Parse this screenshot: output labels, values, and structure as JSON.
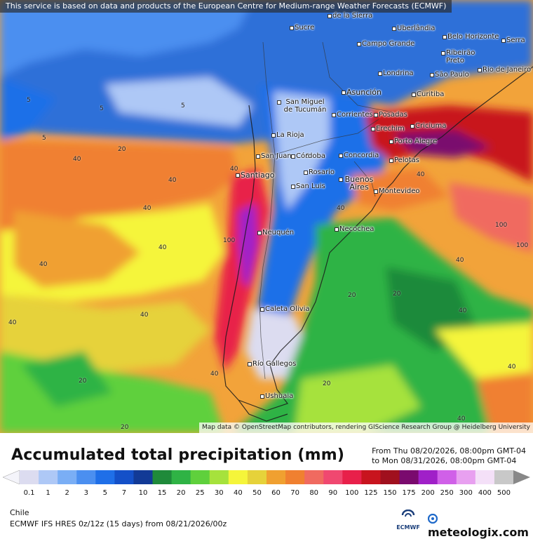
{
  "notice": "This service is based on data and products of the European Centre for Medium-range Weather Forecasts (ECMWF)",
  "attribution": "Map data © OpenStreetMap contributors, rendering GIScience Research Group @ Heidelberg University",
  "title": "Accumulated total precipitation (mm)",
  "period": {
    "from": "From Thu 08/20/2026, 08:00pm GMT-04",
    "to": "to Mon 08/31/2026, 08:00pm GMT-04"
  },
  "legend": {
    "values": [
      "0.1",
      "1",
      "2",
      "3",
      "5",
      "7",
      "10",
      "15",
      "20",
      "25",
      "30",
      "40",
      "50",
      "60",
      "70",
      "80",
      "90",
      "100",
      "125",
      "150",
      "175",
      "200",
      "250",
      "300",
      "400",
      "500"
    ],
    "colors": [
      "#dcdcf0",
      "#aec8f6",
      "#7aaef5",
      "#4b8ff0",
      "#1f6fe8",
      "#1450c8",
      "#123a96",
      "#1f8a3a",
      "#2fb345",
      "#5fd03c",
      "#a6e23c",
      "#f5f53a",
      "#e6d23a",
      "#f0a030",
      "#f08030",
      "#f06a60",
      "#f04870",
      "#e8204a",
      "#c8141e",
      "#a0101e",
      "#7a0a6e",
      "#a020c8",
      "#d060e8",
      "#e8a0f0",
      "#f4e0f8",
      "#c8c8c8"
    ]
  },
  "region": "Chile",
  "model": "ECMWF IFS HRES 0z/12z (15 days) from  08/21/2026/00z",
  "ecmwf_logo": "ECMWF",
  "brand": {
    "name": "meteologix",
    "dot": ".com"
  },
  "cities": [
    {
      "name": "Sucre"
    },
    {
      "name": "de la Sierra"
    },
    {
      "name": "Uberlândia"
    },
    {
      "name": "Belo Horizonte"
    },
    {
      "name": "Serra"
    },
    {
      "name": "Campo Grande"
    },
    {
      "name": "Ribeirão Preto"
    },
    {
      "name": "Londrina"
    },
    {
      "name": "São Paulo"
    },
    {
      "name": "Rio de Janeiro"
    },
    {
      "name": "Asunción"
    },
    {
      "name": "Curitiba"
    },
    {
      "name": "San Miguel de Tucumán"
    },
    {
      "name": "Corrientes"
    },
    {
      "name": "Posadas"
    },
    {
      "name": "Erechim"
    },
    {
      "name": "Criciuma"
    },
    {
      "name": "La Rioja"
    },
    {
      "name": "Porto Alegre"
    },
    {
      "name": "San Juan"
    },
    {
      "name": "Córdoba"
    },
    {
      "name": "Concordia"
    },
    {
      "name": "Pelotas"
    },
    {
      "name": "Santiago"
    },
    {
      "name": "Rosario"
    },
    {
      "name": "San Luis"
    },
    {
      "name": "Buenos Aires"
    },
    {
      "name": "Montevideo"
    },
    {
      "name": "Neuquén"
    },
    {
      "name": "Necochea"
    },
    {
      "name": "Caleta Olivia"
    },
    {
      "name": "Río Gallegos"
    },
    {
      "name": "Ushuaia"
    }
  ],
  "contour_labels": [
    "5",
    "20",
    "40",
    "100"
  ]
}
